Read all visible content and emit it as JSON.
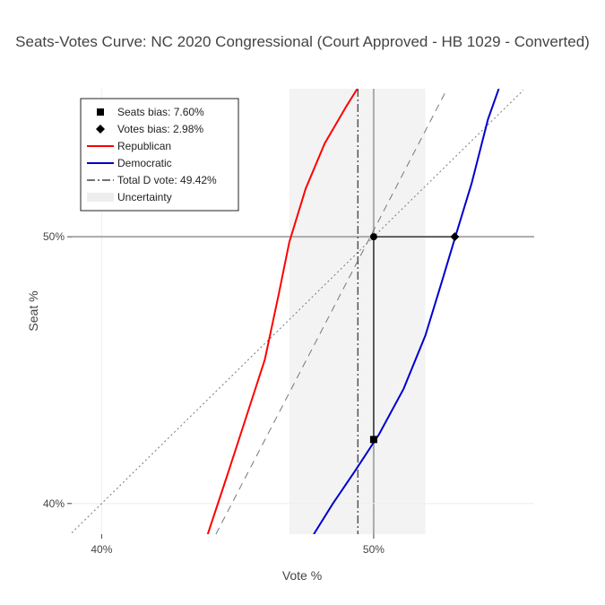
{
  "chart_data": {
    "type": "line",
    "title": "Seats-Votes Curve: NC 2020 Congressional (Court Approved - HB 1029 - Converted)",
    "xlabel": "Vote %",
    "ylabel": "Seat %",
    "xlim": [
      38.9,
      55.9
    ],
    "ylim": [
      38.85,
      55.55
    ],
    "x_ticks": [
      {
        "value": 40,
        "label": "40%"
      },
      {
        "value": 50,
        "label": "50%"
      }
    ],
    "y_ticks": [
      {
        "value": 40,
        "label": "40%"
      },
      {
        "value": 50,
        "label": "50%"
      }
    ],
    "grid": true,
    "legend_position": "top-left",
    "uncertainty_band": {
      "x": [
        46.9,
        51.9
      ],
      "name": "Uncertainty",
      "color": "#eeeeee"
    },
    "total_d_vote": {
      "x": 49.42,
      "name": "Total D vote: 49.42%",
      "color": "#555555"
    },
    "seats_bias": {
      "name": "Seats bias: 7.60%",
      "x": 50,
      "y": 42.4
    },
    "votes_bias": {
      "name": "Votes bias: 2.98%",
      "x": 52.98,
      "y": 50
    },
    "bias_point": {
      "x": 50,
      "y": 50
    },
    "series": [
      {
        "name": "Republican",
        "color": "#ff0000",
        "x": [
          43.9,
          44.6,
          45.3,
          46.0,
          46.5,
          46.9,
          47.5,
          48.2,
          49.0,
          49.4
        ],
        "y": [
          38.85,
          41.0,
          43.2,
          45.4,
          47.8,
          49.8,
          51.8,
          53.5,
          54.9,
          55.55
        ]
      },
      {
        "name": "Democratic",
        "color": "#0000cc",
        "x": [
          47.8,
          48.5,
          49.3,
          50.2,
          51.1,
          51.9,
          52.5,
          53.0,
          53.6,
          54.2,
          54.6
        ],
        "y": [
          38.85,
          40.0,
          41.2,
          42.6,
          44.3,
          46.3,
          48.3,
          50.0,
          52.0,
          54.4,
          55.55
        ]
      }
    ],
    "reference_lines": [
      {
        "kind": "dotted",
        "x": [
          38.9,
          55.5
        ],
        "y": [
          38.9,
          55.5
        ]
      },
      {
        "kind": "dashed",
        "x": [
          44.2,
          52.7
        ],
        "y": [
          38.85,
          55.55
        ]
      }
    ],
    "legend": [
      {
        "label": "Seats bias: 7.60%",
        "symbol": "square"
      },
      {
        "label": "Votes bias: 2.98%",
        "symbol": "diamond"
      },
      {
        "label": "Republican",
        "symbol": "line",
        "color": "#ff0000"
      },
      {
        "label": "Democratic",
        "symbol": "line",
        "color": "#0000cc"
      },
      {
        "label": "Total D vote: 49.42%",
        "symbol": "dashdot"
      },
      {
        "label": "Uncertainty",
        "symbol": "band"
      }
    ]
  }
}
